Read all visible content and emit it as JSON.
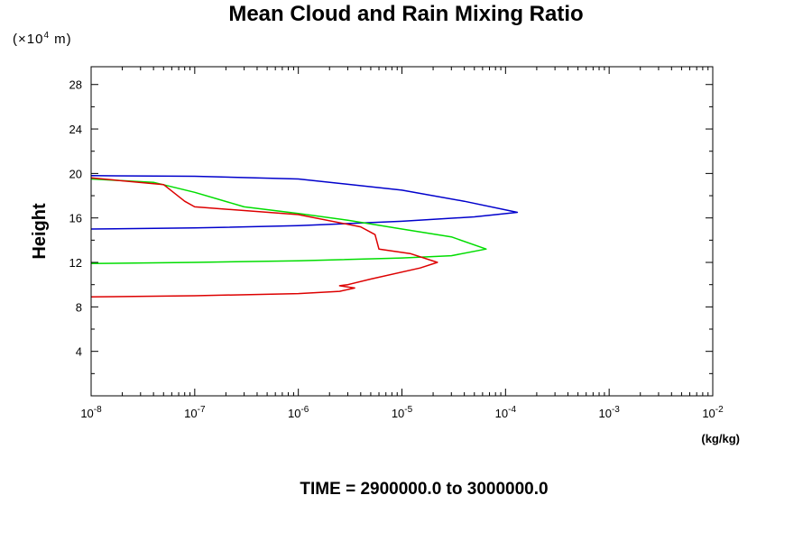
{
  "chart_data": {
    "type": "line",
    "title": "Mean Cloud and Rain Mixing Ratio",
    "ylabel": "Height",
    "y_unit_prefix": "(×10",
    "y_unit_exp": "4",
    "y_unit_suffix": " m)",
    "xlabel": "(kg/kg)",
    "footer": "TIME = 2900000.0 to 3000000.0",
    "xscale": "log",
    "xlim": [
      1e-08,
      0.01
    ],
    "ylim": [
      0,
      29.6
    ],
    "x_ticks": [
      {
        "base": "10",
        "exp": "-8",
        "value": 1e-08
      },
      {
        "base": "10",
        "exp": "-7",
        "value": 1e-07
      },
      {
        "base": "10",
        "exp": "-6",
        "value": 1e-06
      },
      {
        "base": "10",
        "exp": "-5",
        "value": 1e-05
      },
      {
        "base": "10",
        "exp": "-4",
        "value": 0.0001
      },
      {
        "base": "10",
        "exp": "-3",
        "value": 0.001
      },
      {
        "base": "10",
        "exp": "-2",
        "value": 0.01
      }
    ],
    "y_ticks": [
      "4",
      "8",
      "12",
      "16",
      "20",
      "24",
      "28"
    ],
    "grid": false,
    "series": [
      {
        "color": "#0000cc",
        "points": [
          [
            1e-08,
            19.8
          ],
          [
            1e-07,
            19.75
          ],
          [
            1e-06,
            19.5
          ],
          [
            1e-05,
            18.5
          ],
          [
            4e-05,
            17.5
          ],
          [
            0.00013,
            16.5
          ],
          [
            5e-05,
            16.1
          ],
          [
            1e-05,
            15.7
          ],
          [
            1e-06,
            15.3
          ],
          [
            1e-07,
            15.1
          ],
          [
            1e-08,
            15.0
          ]
        ]
      },
      {
        "color": "#00dd00",
        "points": [
          [
            1e-08,
            19.5
          ],
          [
            4e-08,
            19.2
          ],
          [
            1e-07,
            18.3
          ],
          [
            3e-07,
            17.0
          ],
          [
            1e-06,
            16.4
          ],
          [
            3e-06,
            15.8
          ],
          [
            1e-05,
            15.0
          ],
          [
            3e-05,
            14.3
          ],
          [
            6.5e-05,
            13.2
          ],
          [
            3e-05,
            12.6
          ],
          [
            1e-05,
            12.4
          ],
          [
            1e-06,
            12.15
          ],
          [
            1e-07,
            12.0
          ],
          [
            1e-08,
            11.9
          ]
        ]
      },
      {
        "color": "#dd0000",
        "points": [
          [
            1e-08,
            19.6
          ],
          [
            5e-08,
            19.0
          ],
          [
            8e-08,
            17.5
          ],
          [
            1e-07,
            17.0
          ],
          [
            1e-06,
            16.3
          ],
          [
            4e-06,
            15.2
          ],
          [
            5.5e-06,
            14.5
          ],
          [
            6e-06,
            13.2
          ],
          [
            1.2e-05,
            12.8
          ],
          [
            2.2e-05,
            12.0
          ],
          [
            1.5e-05,
            11.5
          ],
          [
            5e-06,
            10.5
          ],
          [
            3e-06,
            10.0
          ],
          [
            2.5e-06,
            9.9
          ],
          [
            3.5e-06,
            9.7
          ],
          [
            2.5e-06,
            9.4
          ],
          [
            1e-06,
            9.2
          ],
          [
            1e-07,
            9.0
          ],
          [
            1e-08,
            8.9
          ]
        ]
      }
    ]
  }
}
